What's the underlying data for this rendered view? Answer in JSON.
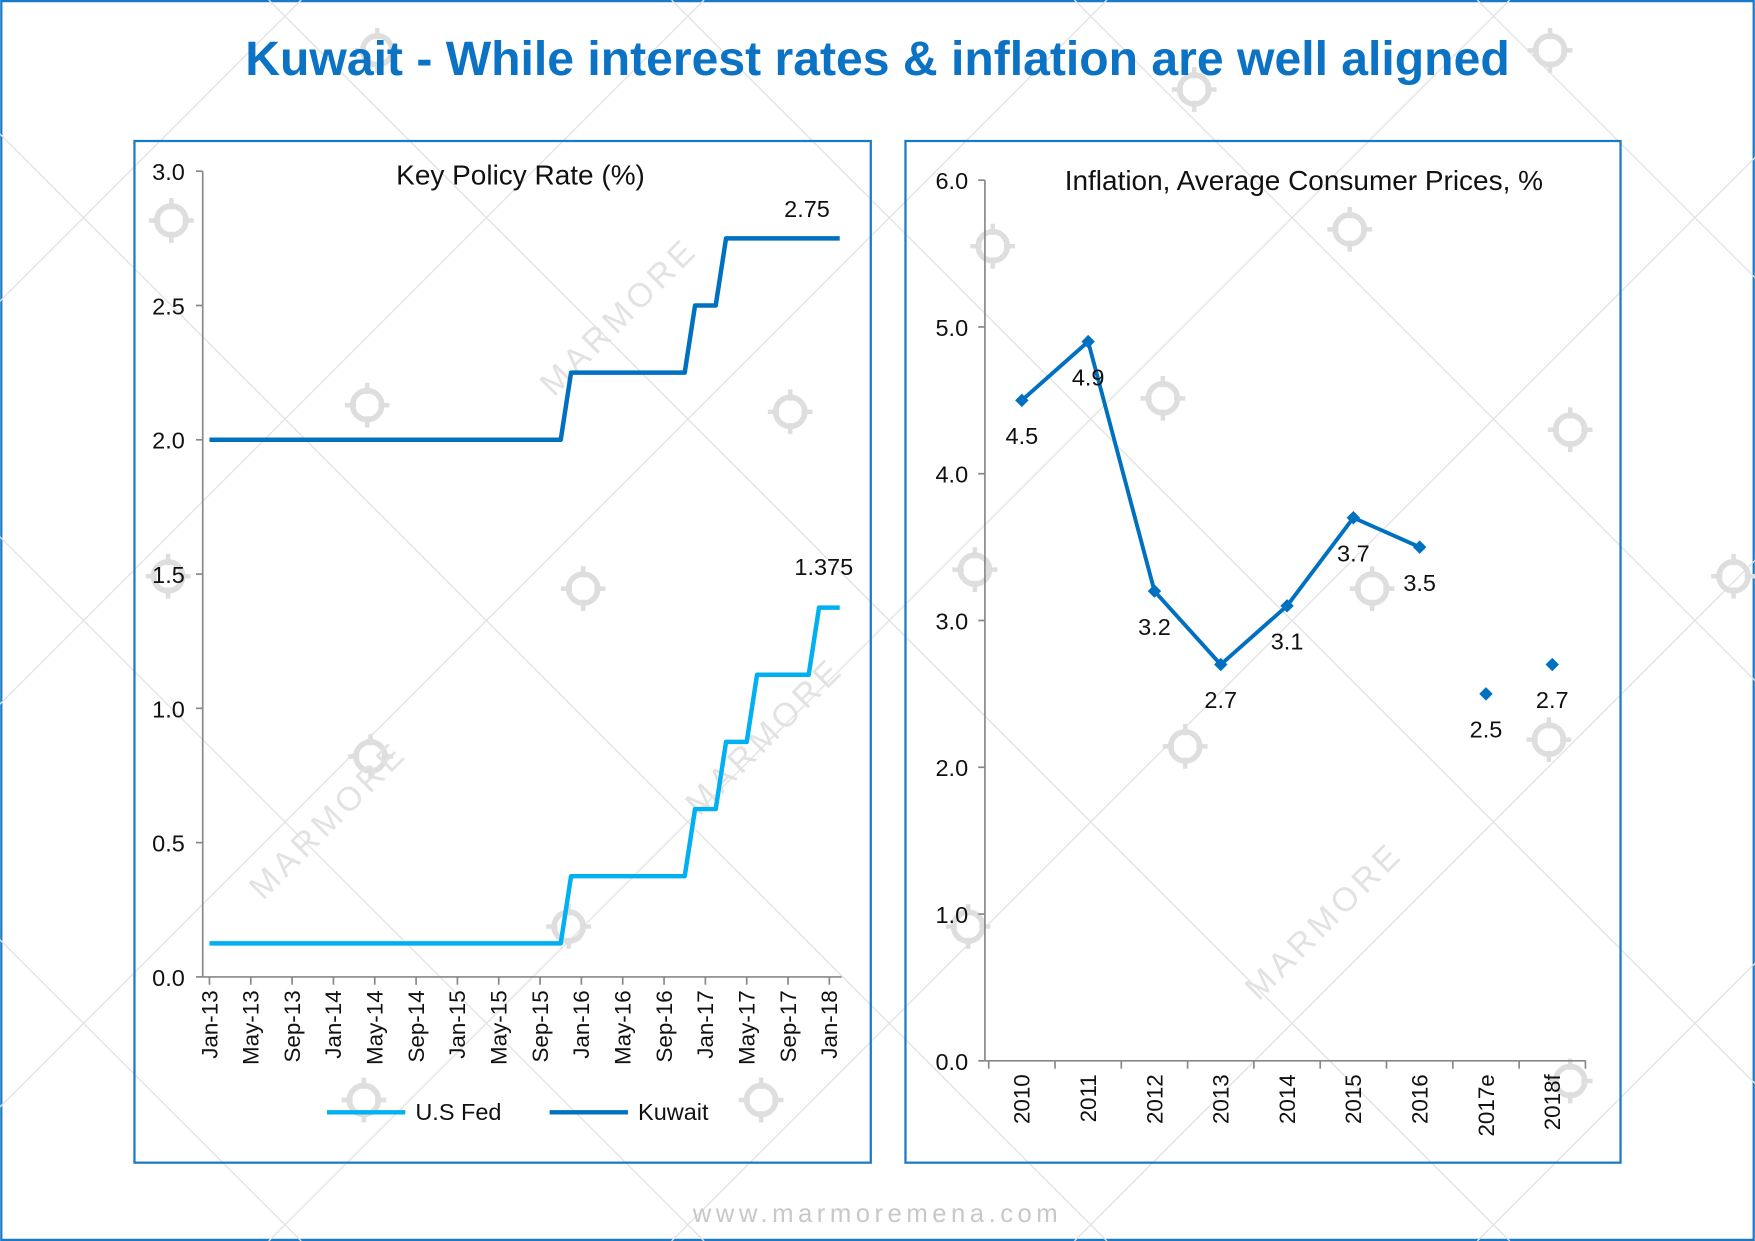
{
  "title": "Kuwait - While interest rates & inflation are well aligned",
  "footer": "www.marmoremena.com",
  "watermark": "MARMORE",
  "colors": {
    "title": "#0b72c4",
    "border": "#1a7ac8",
    "kuwait": "#0070c0",
    "fed": "#00b0f0",
    "inflation": "#0070c0"
  },
  "chart_data": [
    {
      "type": "line",
      "title": "Key Policy Rate (%)",
      "ylim": [
        0,
        3.0
      ],
      "yticks": [
        "0.0",
        "0.5",
        "1.0",
        "1.5",
        "2.0",
        "2.5",
        "3.0"
      ],
      "xticks": [
        "Jan-13",
        "May-13",
        "Sep-13",
        "Jan-14",
        "May-14",
        "Sep-14",
        "Jan-15",
        "May-15",
        "Sep-15",
        "Jan-16",
        "May-16",
        "Sep-16",
        "Jan-17",
        "May-17",
        "Sep-17",
        "Jan-18"
      ],
      "x_range": [
        "Jan-13",
        "Feb-18"
      ],
      "grid": false,
      "legend": "bottom",
      "series": [
        {
          "name": "U.S Fed",
          "color": "#00b0f0",
          "steps": [
            {
              "from": "Jan-13",
              "value": 0.125
            },
            {
              "from": "Dec-15",
              "value": 0.375
            },
            {
              "from": "Dec-16",
              "value": 0.625
            },
            {
              "from": "Mar-17",
              "value": 0.875
            },
            {
              "from": "Jun-17",
              "value": 1.125
            },
            {
              "from": "Dec-17",
              "value": 1.375
            }
          ],
          "end_label": "1.375"
        },
        {
          "name": "Kuwait",
          "color": "#0070c0",
          "steps": [
            {
              "from": "Jan-13",
              "value": 2.0
            },
            {
              "from": "Dec-15",
              "value": 2.25
            },
            {
              "from": "Dec-16",
              "value": 2.5
            },
            {
              "from": "Mar-17",
              "value": 2.75
            }
          ],
          "end_label": "2.75"
        }
      ]
    },
    {
      "type": "line",
      "title": "Inflation, Average Consumer Prices, %",
      "ylim": [
        0,
        6.0
      ],
      "yticks": [
        "0.0",
        "1.0",
        "2.0",
        "3.0",
        "4.0",
        "5.0",
        "6.0"
      ],
      "categories": [
        "2010",
        "2011",
        "2012",
        "2013",
        "2014",
        "2015",
        "2016",
        "2017e",
        "2018f"
      ],
      "grid": false,
      "series": [
        {
          "color": "#0070c0",
          "values": [
            4.5,
            4.9,
            3.2,
            2.7,
            3.1,
            3.7,
            3.5,
            2.5,
            2.7
          ],
          "labels": [
            "4.5",
            "4.9",
            "3.2",
            "2.7",
            "3.1",
            "3.7",
            "3.5",
            "2.5",
            "2.7"
          ],
          "line_through": "2016",
          "markers_only_after": "2016"
        }
      ]
    }
  ]
}
